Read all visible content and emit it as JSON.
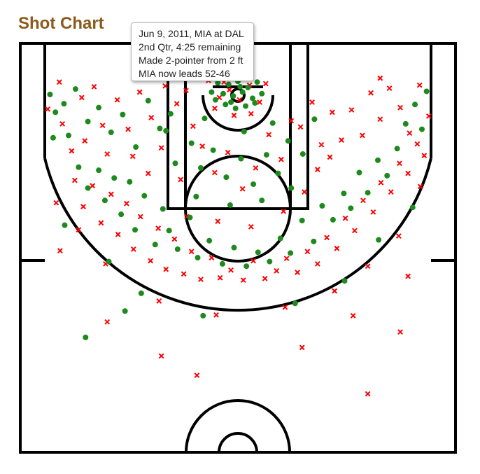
{
  "page": {
    "title": "Shot Chart"
  },
  "tooltip": {
    "line1": "Jun 9, 2011, MIA at DAL",
    "line2": "2nd Qtr, 4:25 remaining",
    "line3": "Made 2-pointer from 2 ft",
    "line4": "MIA now leads 52-46"
  },
  "colors": {
    "made": "#1e8a1e",
    "missed": "#ff0000",
    "title": "#8b5a1a",
    "court": "#000000"
  },
  "chart_data": {
    "type": "scatter",
    "title": "Shot Chart",
    "xlabel": "",
    "ylabel": "",
    "units": "feet (x: -25 to 25 from basket center; y: feet from basket toward half court)",
    "xlim": [
      -25,
      25
    ],
    "ylim": [
      -5.2,
      42
    ],
    "series": [
      {
        "name": "",
        "marker": "dot-green",
        "points": [
          [
            -23.9,
            5.5
          ],
          [
            -24.3,
            -0.1
          ],
          [
            -23.6,
            2.2
          ],
          [
            -22.5,
            1.1
          ],
          [
            -21.9,
            5.2
          ],
          [
            -21.0,
            -0.8
          ],
          [
            -19.4,
            3.4
          ],
          [
            -18.0,
            1.6
          ],
          [
            -16.4,
            4.8
          ],
          [
            -14.9,
            2.5
          ],
          [
            -13.2,
            6.7
          ],
          [
            -11.6,
            0.7
          ],
          [
            -10.1,
            4.3
          ],
          [
            -8.7,
            2.4
          ],
          [
            -20.6,
            9.3
          ],
          [
            -19.4,
            12.0
          ],
          [
            -18.0,
            9.7
          ],
          [
            -17.2,
            13.6
          ],
          [
            -16.0,
            10.7
          ],
          [
            -15.1,
            15.4
          ],
          [
            -14.0,
            11.2
          ],
          [
            -13.3,
            17.4
          ],
          [
            -12.1,
            13.0
          ],
          [
            -10.7,
            19.3
          ],
          [
            -9.7,
            14.7
          ],
          [
            -8.9,
            17.5
          ],
          [
            -7.8,
            19.9
          ],
          [
            -6.2,
            15.8
          ],
          [
            -5.2,
            21.0
          ],
          [
            -3.7,
            18.8
          ],
          [
            -2.0,
            21.8
          ],
          [
            -0.5,
            19.7
          ],
          [
            1.1,
            22.1
          ],
          [
            2.6,
            20.3
          ],
          [
            4.1,
            21.5
          ],
          [
            5.5,
            18.5
          ],
          [
            6.8,
            20.4
          ],
          [
            8.3,
            16.2
          ],
          [
            9.8,
            18.9
          ],
          [
            10.9,
            14.3
          ],
          [
            12.3,
            16.1
          ],
          [
            13.7,
            12.7
          ],
          [
            14.6,
            14.6
          ],
          [
            15.7,
            10.0
          ],
          [
            16.8,
            12.6
          ],
          [
            18.1,
            8.4
          ],
          [
            19.3,
            10.4
          ],
          [
            20.6,
            6.9
          ],
          [
            21.7,
            3.7
          ],
          [
            22.9,
            1.2
          ],
          [
            23.8,
            4.4
          ],
          [
            24.4,
            -0.5
          ],
          [
            -2.6,
            -1.6
          ],
          [
            -1.9,
            -0.2
          ],
          [
            -1.2,
            -1.4
          ],
          [
            -0.6,
            0.1
          ],
          [
            0.0,
            -1.8
          ],
          [
            0.6,
            -0.4
          ],
          [
            1.3,
            -1.0
          ],
          [
            1.9,
            0.4
          ],
          [
            2.5,
            -1.7
          ],
          [
            -1.6,
            1.2
          ],
          [
            -0.3,
            1.7
          ],
          [
            1.0,
            1.4
          ],
          [
            2.2,
            1.0
          ],
          [
            -2.9,
            0.6
          ],
          [
            0.3,
            -1.1
          ],
          [
            -0.9,
            0.9
          ],
          [
            -3.4,
            -0.4
          ],
          [
            3.1,
            -0.2
          ],
          [
            -6.0,
            6.2
          ],
          [
            -4.8,
            9.4
          ],
          [
            -3.2,
            7.1
          ],
          [
            -1.5,
            10.6
          ],
          [
            0.4,
            8.2
          ],
          [
            2.0,
            11.5
          ],
          [
            3.7,
            7.7
          ],
          [
            5.2,
            10.1
          ],
          [
            6.5,
            5.9
          ],
          [
            -5.4,
            13.1
          ],
          [
            -1.0,
            14.2
          ],
          [
            3.1,
            13.6
          ],
          [
            6.9,
            12.0
          ],
          [
            -8.1,
            8.8
          ],
          [
            8.4,
            7.6
          ],
          [
            -9.3,
            4.6
          ],
          [
            9.9,
            3.1
          ],
          [
            -4.3,
            3.0
          ],
          [
            4.5,
            3.6
          ],
          [
            0.8,
            4.7
          ],
          [
            -16.7,
            21.5
          ],
          [
            -12.5,
            25.6
          ],
          [
            -4.5,
            28.5
          ],
          [
            7.4,
            26.9
          ],
          [
            13.8,
            24.0
          ],
          [
            18.2,
            18.7
          ],
          [
            -22.4,
            16.8
          ],
          [
            22.6,
            14.5
          ],
          [
            -19.7,
            31.3
          ],
          [
            -14.6,
            27.9
          ]
        ]
      },
      {
        "name": "",
        "marker": "x-red",
        "points": [
          [
            -24.6,
            1.8
          ],
          [
            -23.1,
            -1.7
          ],
          [
            -22.7,
            3.7
          ],
          [
            -21.5,
            7.2
          ],
          [
            -20.2,
            0.3
          ],
          [
            -19.8,
            5.9
          ],
          [
            -18.6,
            -1.1
          ],
          [
            -17.5,
            3.9
          ],
          [
            -16.9,
            7.6
          ],
          [
            -15.6,
            0.6
          ],
          [
            -14.2,
            4.4
          ],
          [
            -12.7,
            -0.4
          ],
          [
            -11.2,
            2.9
          ],
          [
            -9.4,
            -1.2
          ],
          [
            -7.9,
            1.1
          ],
          [
            -6.7,
            -0.6
          ],
          [
            -21.1,
            11.0
          ],
          [
            -20.0,
            14.4
          ],
          [
            -18.8,
            11.7
          ],
          [
            -17.7,
            16.5
          ],
          [
            -16.4,
            12.8
          ],
          [
            -15.5,
            18.0
          ],
          [
            -14.4,
            14.0
          ],
          [
            -13.5,
            19.9
          ],
          [
            -12.6,
            15.7
          ],
          [
            -11.3,
            21.4
          ],
          [
            -10.3,
            17.2
          ],
          [
            -9.3,
            22.5
          ],
          [
            -8.2,
            18.6
          ],
          [
            -7.0,
            23.1
          ],
          [
            -6.0,
            20.2
          ],
          [
            -4.8,
            23.8
          ],
          [
            -3.4,
            21.0
          ],
          [
            -2.3,
            23.6
          ],
          [
            -0.9,
            22.6
          ],
          [
            0.7,
            23.9
          ],
          [
            2.0,
            21.4
          ],
          [
            3.5,
            23.7
          ],
          [
            5.0,
            22.7
          ],
          [
            6.3,
            21.1
          ],
          [
            7.7,
            22.9
          ],
          [
            9.0,
            20.2
          ],
          [
            10.3,
            21.8
          ],
          [
            11.5,
            18.4
          ],
          [
            12.8,
            19.8
          ],
          [
            13.9,
            15.9
          ],
          [
            15.1,
            17.5
          ],
          [
            16.2,
            13.6
          ],
          [
            17.5,
            15.1
          ],
          [
            18.5,
            11.3
          ],
          [
            19.8,
            12.5
          ],
          [
            20.9,
            8.8
          ],
          [
            22.0,
            10.1
          ],
          [
            23.2,
            6.3
          ],
          [
            24.1,
            7.8
          ],
          [
            24.7,
            2.7
          ],
          [
            23.5,
            -1.3
          ],
          [
            22.2,
            4.9
          ],
          [
            21.0,
            1.6
          ],
          [
            19.6,
            -0.9
          ],
          [
            18.4,
            3.1
          ],
          [
            17.2,
            -0.3
          ],
          [
            16.1,
            5.2
          ],
          [
            14.7,
            1.9
          ],
          [
            13.4,
            5.8
          ],
          [
            12.2,
            2.2
          ],
          [
            10.8,
            6.4
          ],
          [
            9.6,
            0.9
          ],
          [
            8.1,
            4.1
          ],
          [
            -3.8,
            -1.9
          ],
          [
            -2.4,
            0.3
          ],
          [
            -1.1,
            -0.7
          ],
          [
            0.2,
            0.6
          ],
          [
            1.5,
            -1.3
          ],
          [
            2.8,
            0.9
          ],
          [
            3.6,
            -1.5
          ],
          [
            -3.0,
            1.7
          ],
          [
            -0.5,
            2.6
          ],
          [
            1.7,
            2.4
          ],
          [
            -1.8,
            -1.7
          ],
          [
            -5.8,
            4.0
          ],
          [
            -4.6,
            6.6
          ],
          [
            -3.0,
            10.0
          ],
          [
            -1.3,
            7.4
          ],
          [
            0.6,
            12.1
          ],
          [
            2.3,
            9.4
          ],
          [
            4.0,
            5.1
          ],
          [
            5.6,
            8.3
          ],
          [
            6.9,
            3.3
          ],
          [
            -7.4,
            10.9
          ],
          [
            -6.6,
            15.7
          ],
          [
            -2.6,
            16.3
          ],
          [
            1.7,
            17.0
          ],
          [
            5.9,
            15.0
          ],
          [
            8.6,
            12.5
          ],
          [
            -9.9,
            6.8
          ],
          [
            10.3,
            9.6
          ],
          [
            -11.6,
            10.1
          ],
          [
            11.9,
            8.0
          ],
          [
            -13.6,
            7.9
          ],
          [
            -20.6,
            17.4
          ],
          [
            -17.1,
            21.8
          ],
          [
            -10.2,
            26.6
          ],
          [
            -2.8,
            28.4
          ],
          [
            6.1,
            27.4
          ],
          [
            12.5,
            25.3
          ],
          [
            16.8,
            22.1
          ],
          [
            20.8,
            18.2
          ],
          [
            -23.5,
            13.9
          ],
          [
            23.6,
            11.8
          ],
          [
            -16.9,
            29.3
          ],
          [
            -9.9,
            33.7
          ],
          [
            8.3,
            32.6
          ],
          [
            14.9,
            28.5
          ],
          [
            21.0,
            30.6
          ],
          [
            -5.3,
            36.2
          ],
          [
            16.8,
            38.6
          ],
          [
            -23.0,
            20.1
          ],
          [
            22.0,
            23.4
          ],
          [
            18.4,
            -2.2
          ]
        ]
      }
    ]
  }
}
